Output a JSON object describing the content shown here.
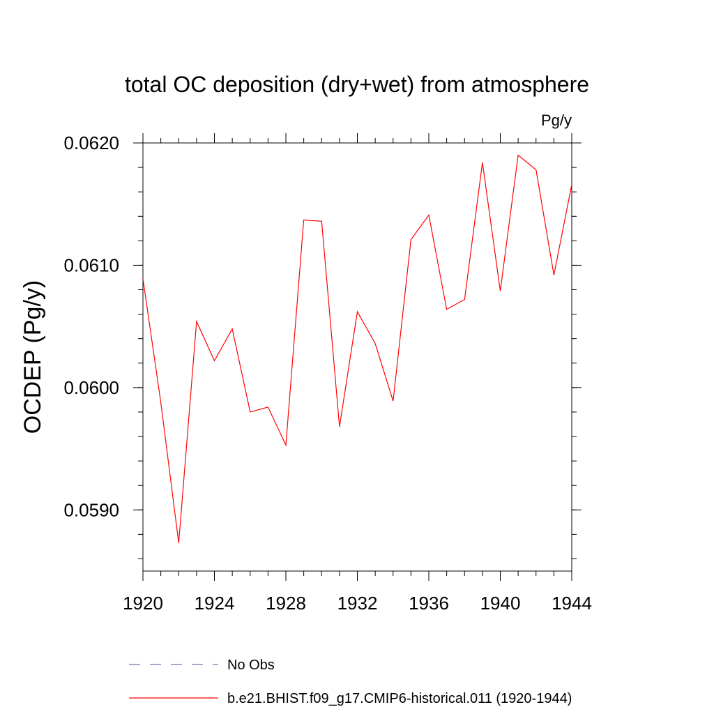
{
  "chart_data": {
    "type": "line",
    "title": "total OC deposition (dry+wet) from atmosphere",
    "units_label": "Pg/y",
    "ylabel": "OCDEP  (Pg/y)",
    "xlabel": "",
    "xlim": [
      1920,
      1944
    ],
    "ylim": [
      0.0585,
      0.062
    ],
    "x_ticks": [
      1920,
      1924,
      1928,
      1932,
      1936,
      1940,
      1944
    ],
    "x_tick_labels": [
      "1920",
      "1924",
      "1928",
      "1932",
      "1936",
      "1940",
      "1944"
    ],
    "y_ticks": [
      0.059,
      0.06,
      0.061,
      0.062
    ],
    "y_tick_labels": [
      "0.0590",
      "0.0600",
      "0.0610",
      "0.0620"
    ],
    "grid": false,
    "legend_position": "bottom",
    "series": [
      {
        "name": "b.e21.BHIST.f09_g17.CMIP6-historical.011 (1920-1944)",
        "color": "#ff0000",
        "style": "solid",
        "x": [
          1920,
          1921,
          1922,
          1923,
          1924,
          1925,
          1926,
          1927,
          1928,
          1929,
          1930,
          1931,
          1932,
          1933,
          1934,
          1935,
          1936,
          1937,
          1938,
          1939,
          1940,
          1941,
          1942,
          1943,
          1944
        ],
        "y": [
          0.06089,
          0.05988,
          0.05873,
          0.06054,
          0.06022,
          0.06048,
          0.0598,
          0.05984,
          0.05953,
          0.06137,
          0.06136,
          0.05968,
          0.06062,
          0.06036,
          0.05989,
          0.06121,
          0.06141,
          0.06064,
          0.06072,
          0.06184,
          0.06079,
          0.0619,
          0.06178,
          0.06092,
          0.06166
        ]
      }
    ],
    "legend": [
      {
        "label": "No Obs",
        "color": "#7a6fb5",
        "style": "dashed"
      },
      {
        "label": "b.e21.BHIST.f09_g17.CMIP6-historical.011 (1920-1944)",
        "color": "#ff0000",
        "style": "solid"
      }
    ]
  }
}
